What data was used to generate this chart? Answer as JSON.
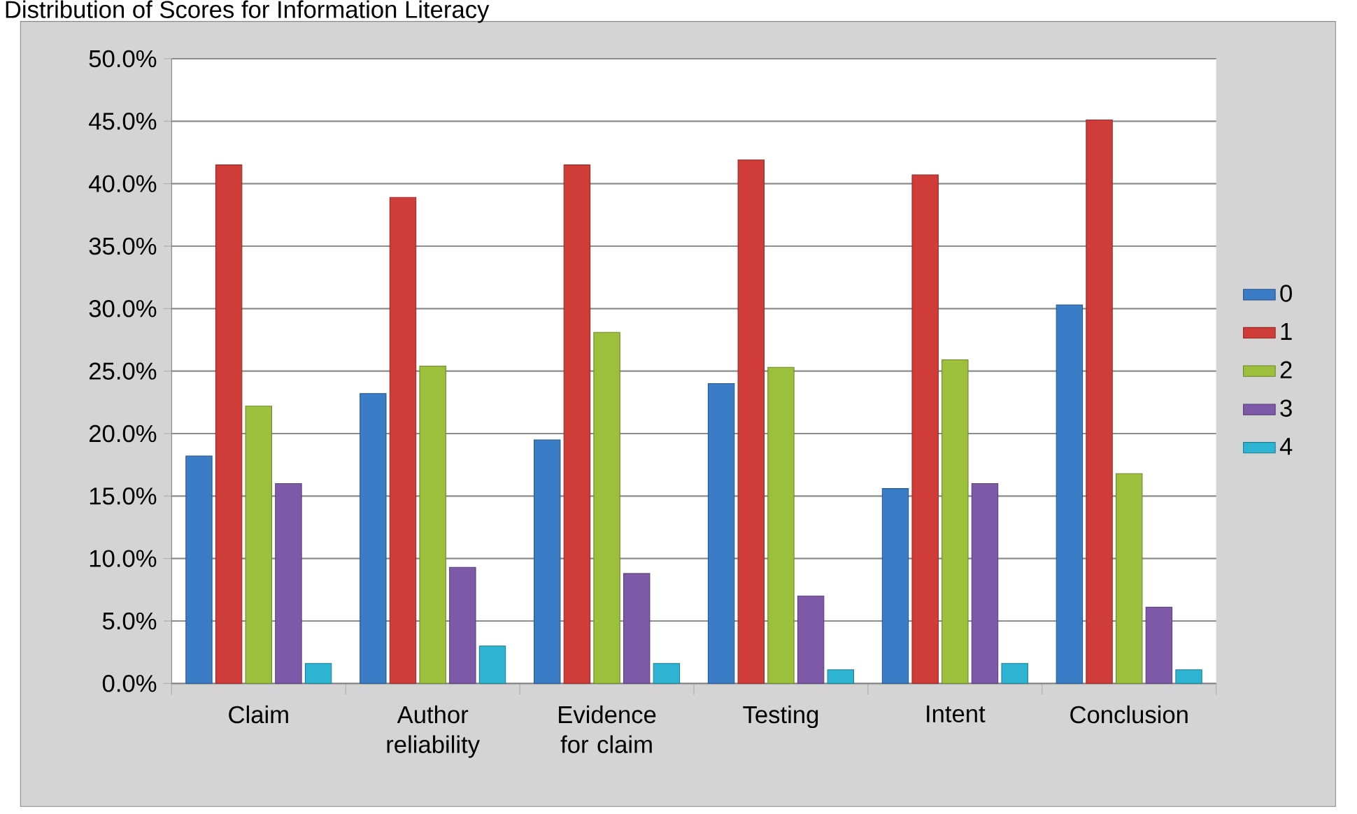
{
  "chart_data": {
    "type": "bar",
    "title": "Distribution of Scores for Information Literacy",
    "categories": [
      "Claim",
      "Author reliability",
      "Evidence for claim",
      "Testing",
      "Intent",
      "Conclusion"
    ],
    "series": [
      {
        "name": "0",
        "color": "#3a7cc6",
        "values": [
          18.2,
          23.2,
          19.5,
          24.0,
          15.6,
          30.3
        ]
      },
      {
        "name": "1",
        "color": "#d03c38",
        "values": [
          41.5,
          38.9,
          41.5,
          41.9,
          40.7,
          45.1
        ]
      },
      {
        "name": "2",
        "color": "#9cc03c",
        "values": [
          22.2,
          25.4,
          28.1,
          25.3,
          25.9,
          16.8
        ]
      },
      {
        "name": "3",
        "color": "#7d59a8",
        "values": [
          16.0,
          9.3,
          8.8,
          7.0,
          16.0,
          6.1
        ]
      },
      {
        "name": "4",
        "color": "#2db4d2",
        "values": [
          1.6,
          3.0,
          1.6,
          1.1,
          1.6,
          1.1
        ]
      }
    ],
    "ylim": [
      0,
      50
    ],
    "yticks": [
      {
        "value": 0,
        "label": "0.0%"
      },
      {
        "value": 5,
        "label": "5.0%"
      },
      {
        "value": 10,
        "label": "10.0%"
      },
      {
        "value": 15,
        "label": "15.0%"
      },
      {
        "value": 20,
        "label": "20.0%"
      },
      {
        "value": 25,
        "label": "25.0%"
      },
      {
        "value": 30,
        "label": "30.0%"
      },
      {
        "value": 35,
        "label": "35.0%"
      },
      {
        "value": 40,
        "label": "40.0%"
      },
      {
        "value": 45,
        "label": "45.0%"
      },
      {
        "value": 50,
        "label": "50.0%"
      }
    ],
    "grid": "y",
    "legend": "right"
  }
}
